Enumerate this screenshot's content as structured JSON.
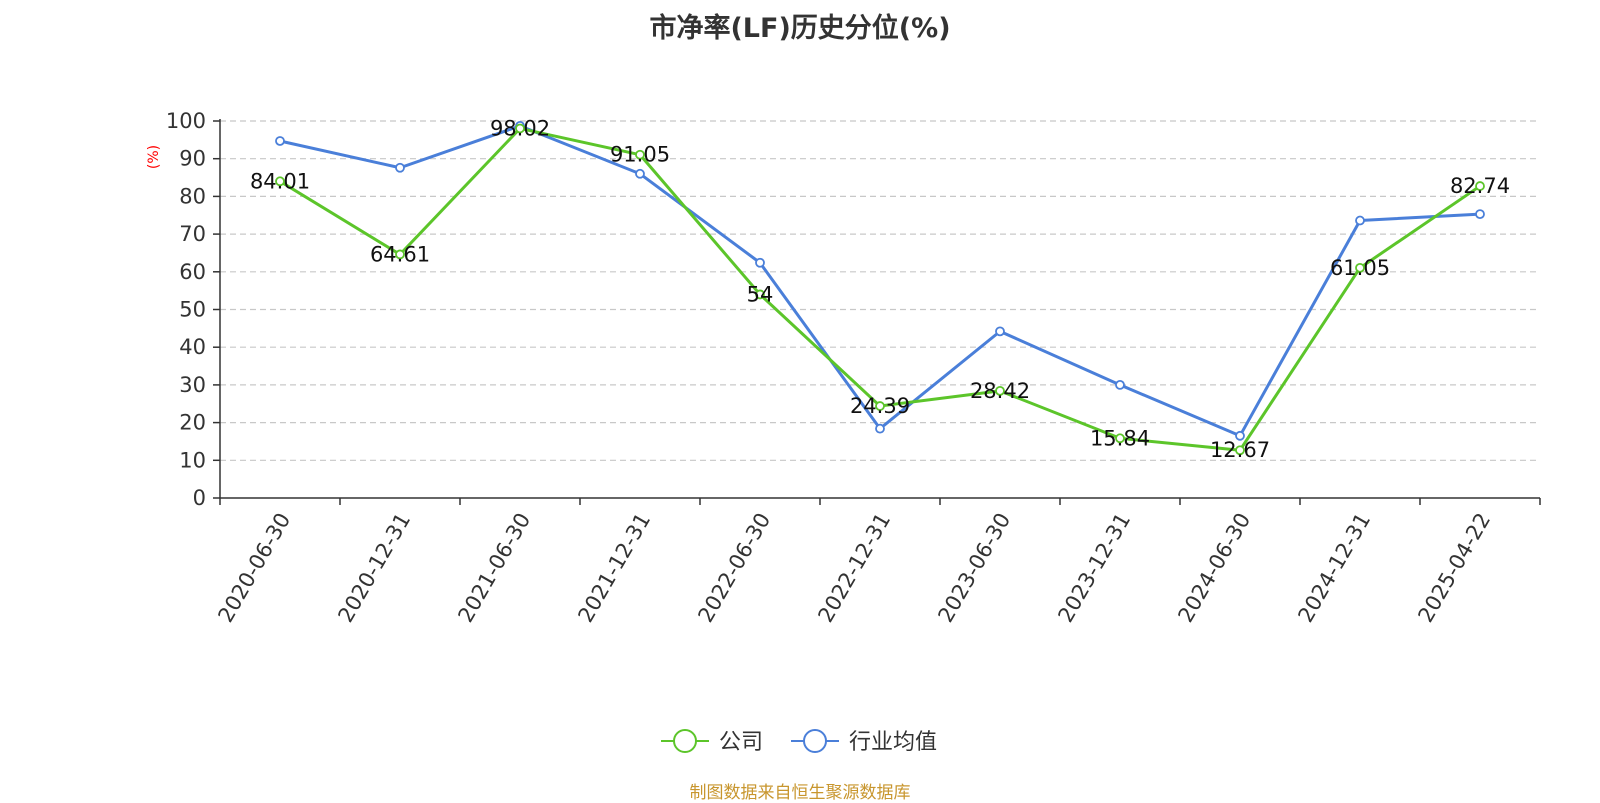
{
  "chart_data": {
    "type": "line",
    "title": "市净率(LF)历史分位(%)",
    "ylabel": "(%)",
    "xlabel": "",
    "ylim": [
      0,
      100
    ],
    "yticks": [
      0,
      10,
      20,
      30,
      40,
      50,
      60,
      70,
      80,
      90,
      100
    ],
    "grid": true,
    "legend_position": "bottom",
    "categories": [
      "2020-06-30",
      "2020-12-31",
      "2021-06-30",
      "2021-12-31",
      "2022-06-30",
      "2022-12-31",
      "2023-06-30",
      "2023-12-31",
      "2024-06-30",
      "2024-12-31",
      "2025-04-22"
    ],
    "series": [
      {
        "name": "公司",
        "color": "#5cc52a",
        "values": [
          84.01,
          64.61,
          98.02,
          91.05,
          54,
          24.39,
          28.42,
          15.84,
          12.67,
          61.05,
          82.74
        ],
        "labels": [
          "84.01",
          "64.61",
          "98.02",
          "91.05",
          "54",
          "24.39",
          "28.42",
          "15.84",
          "12.67",
          "61.05",
          "82.74"
        ]
      },
      {
        "name": "行业均值",
        "color": "#4a7fd9",
        "values": [
          94.7,
          87.6,
          98.7,
          86.0,
          62.4,
          18.4,
          44.2,
          30.0,
          16.5,
          73.6,
          75.3
        ]
      }
    ]
  },
  "footer": {
    "source": "制图数据来自恒生聚源数据库"
  }
}
